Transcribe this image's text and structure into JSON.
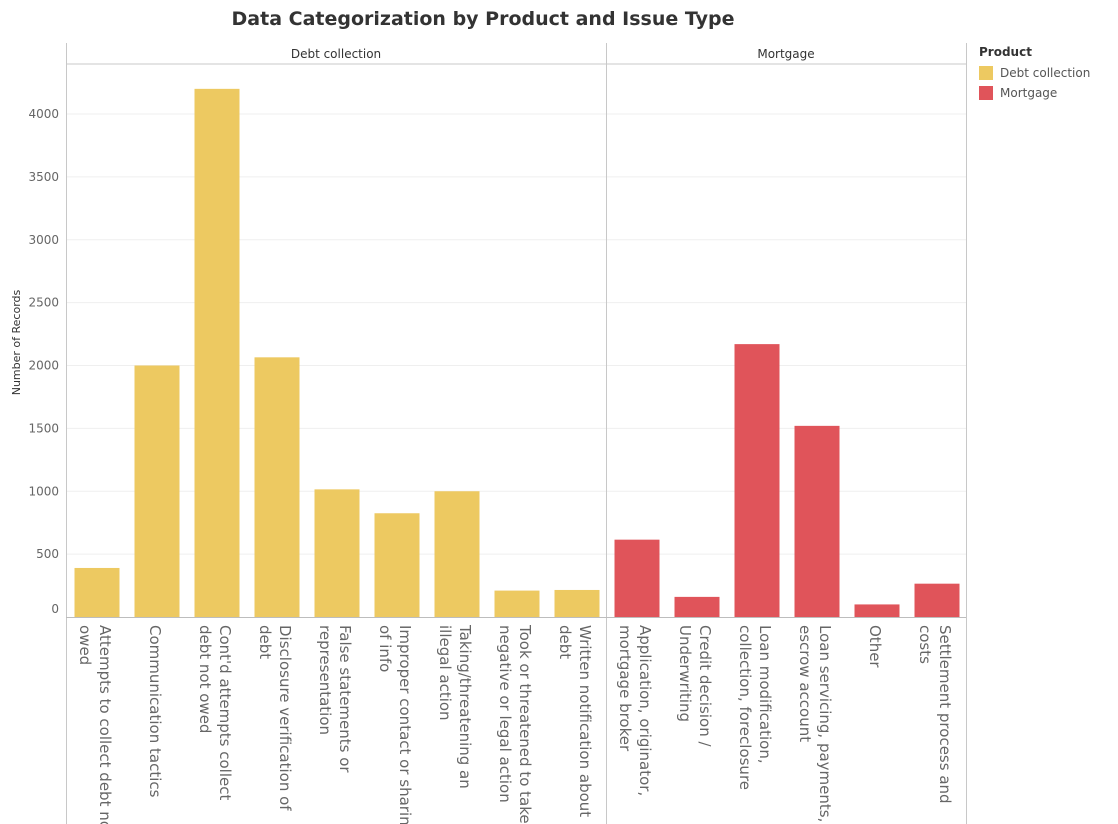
{
  "chart_data": {
    "type": "bar",
    "title": "Data Categorization by Product and Issue Type",
    "ylabel": "Number of Records",
    "ylim": [
      0,
      4500
    ],
    "yticks": [
      0,
      500,
      1000,
      1500,
      2000,
      2500,
      3000,
      3500,
      4000
    ],
    "grid": true,
    "legend": {
      "title": "Product",
      "placement": "right",
      "items": [
        {
          "name": "Debt collection",
          "color": "#EDC961"
        },
        {
          "name": "Mortgage",
          "color": "#E0545A"
        }
      ]
    },
    "panels": [
      {
        "name": "Debt collection",
        "color": "#EDC961",
        "categories": [
          [
            "Attempts to collect debt not",
            "owed"
          ],
          [
            "Communication tactics"
          ],
          [
            "Cont'd attempts collect",
            "debt not owed"
          ],
          [
            "Disclosure verification of",
            "debt"
          ],
          [
            "False statements or",
            "representation"
          ],
          [
            "Improper contact or sharing",
            "of info"
          ],
          [
            "Taking/threatening an",
            "illegal action"
          ],
          [
            "Took or threatened to take",
            "negative or legal action"
          ],
          [
            "Written notification about",
            "debt"
          ]
        ],
        "values": [
          390,
          2000,
          4200,
          2065,
          1015,
          825,
          1000,
          210,
          215
        ]
      },
      {
        "name": "Mortgage",
        "color": "#E0545A",
        "categories": [
          [
            "Application, originator,",
            "mortgage broker"
          ],
          [
            "Credit decision /",
            "Underwriting"
          ],
          [
            "Loan modification,",
            "collection, foreclosure"
          ],
          [
            "Loan servicing, payments,",
            "escrow account"
          ],
          [
            "Other"
          ],
          [
            "Settlement process and",
            "costs"
          ]
        ],
        "values": [
          615,
          160,
          2170,
          1520,
          100,
          265
        ]
      }
    ]
  }
}
